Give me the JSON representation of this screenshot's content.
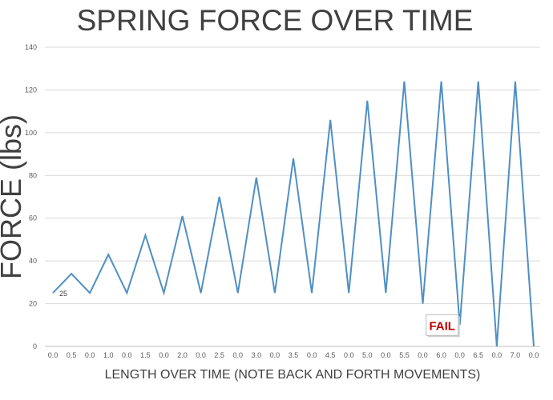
{
  "chart_data": {
    "type": "line",
    "title": "SPRING FORCE  OVER TIME",
    "xlabel": "LENGTH OVER TIME (NOTE BACK AND FORTH MOVEMENTS)",
    "ylabel": "FORCE (lbs)",
    "ylim": [
      0,
      140
    ],
    "yticks": [
      "0",
      "20",
      "40",
      "60",
      "80",
      "100",
      "120",
      "140"
    ],
    "grid": true,
    "legend": "none",
    "line_color": "#4f8fc4",
    "categories": [
      "0.0",
      "0.5",
      "0.0",
      "1.0",
      "0.0",
      "1.5",
      "0.0",
      "2.0",
      "0.0",
      "2.5",
      "0.0",
      "3.0",
      "0.0",
      "3.5",
      "0.0",
      "4.5",
      "0.0",
      "5.0",
      "0.0",
      "5.5",
      "0.0",
      "6.0",
      "0.0",
      "6.5",
      "0.0",
      "7.0",
      "0.0"
    ],
    "values": [
      25,
      34,
      25,
      43,
      25,
      52,
      25,
      61,
      25,
      70,
      25,
      79,
      25,
      88,
      25,
      106,
      25,
      115,
      25,
      124,
      20,
      124,
      10,
      124,
      0,
      124,
      0
    ],
    "annotations": [
      {
        "text": "25",
        "point_index": 0
      },
      {
        "text": "FAIL",
        "point_index": 22,
        "color": "#c00000"
      }
    ]
  }
}
